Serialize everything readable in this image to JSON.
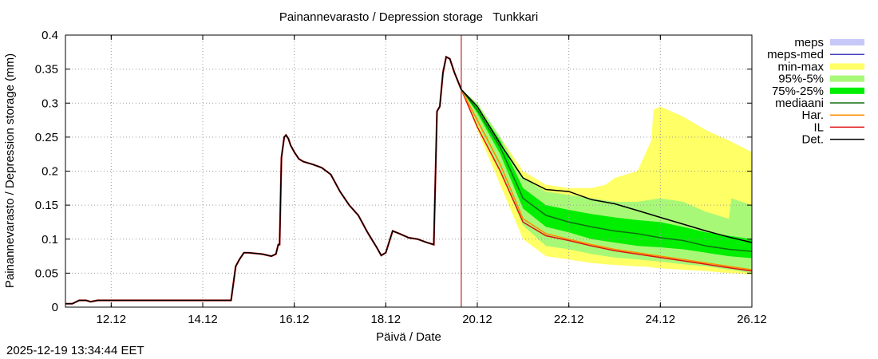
{
  "chart_data": {
    "type": "line",
    "title": "Painannevarasto / Depression storage   Tunkkari",
    "xlabel": "Päivä / Date",
    "ylabel": "Painannevarasto / Depression storage (mm)",
    "x_unit": "days since 11.12",
    "xlim": [
      0,
      15
    ],
    "ylim": [
      0,
      0.4
    ],
    "yticks": [
      0,
      0.05,
      0.1,
      0.15,
      0.2,
      0.25,
      0.3,
      0.35,
      0.4
    ],
    "ytick_labels": [
      "0",
      "0.05",
      "0.1",
      "0.15",
      "0.2",
      "0.25",
      "0.3",
      "0.35",
      "0.4"
    ],
    "xticks": [
      1,
      3,
      5,
      7,
      9,
      11,
      13,
      15
    ],
    "xtick_labels": [
      "12.12",
      "14.12",
      "16.12",
      "18.12",
      "20.12",
      "22.12",
      "24.12",
      "26.12"
    ],
    "forecast_start": 8.65,
    "grid": true,
    "legend_position": "right",
    "legend": [
      {
        "key": "meps",
        "label": "meps",
        "kind": "band"
      },
      {
        "key": "meps_med",
        "label": "meps-med",
        "kind": "line"
      },
      {
        "key": "minmax",
        "label": "min-max",
        "kind": "band"
      },
      {
        "key": "p95_5",
        "label": "95%-5%",
        "kind": "band"
      },
      {
        "key": "p75_25",
        "label": "75%-25%",
        "kind": "band"
      },
      {
        "key": "median",
        "label": "mediaani",
        "kind": "line"
      },
      {
        "key": "har",
        "label": "Har.",
        "kind": "line"
      },
      {
        "key": "il",
        "label": "IL",
        "kind": "line"
      },
      {
        "key": "det",
        "label": "Det.",
        "kind": "line"
      }
    ],
    "colors": {
      "meps": "#c8c8f8",
      "meps_med": "#4040c0",
      "minmax": "#ffff66",
      "p95_5": "#a8f878",
      "p75_25": "#00ee00",
      "median": "#107010",
      "har": "#ff8c00",
      "il": "#e01010",
      "det": "#000000",
      "forecast_line": "#b00000"
    },
    "history": {
      "x": [
        0,
        0.15,
        0.3,
        0.45,
        0.55,
        0.7,
        1,
        2,
        3,
        3.5,
        3.62,
        3.67,
        3.72,
        3.8,
        3.9,
        4,
        4.3,
        4.5,
        4.6,
        4.65,
        4.68,
        4.72,
        4.78,
        4.82,
        4.87,
        4.92,
        5,
        5.1,
        5.2,
        5.4,
        5.6,
        5.8,
        6,
        6.2,
        6.4,
        6.6,
        6.8,
        6.9,
        7,
        7.15,
        7.3,
        7.5,
        7.7,
        7.9,
        8.05,
        8.12,
        8.18,
        8.25,
        8.32,
        8.4,
        8.5,
        8.65
      ],
      "y": [
        0.005,
        0.005,
        0.01,
        0.01,
        0.008,
        0.01,
        0.01,
        0.01,
        0.01,
        0.01,
        0.01,
        0.035,
        0.06,
        0.07,
        0.08,
        0.08,
        0.078,
        0.075,
        0.078,
        0.092,
        0.092,
        0.22,
        0.25,
        0.253,
        0.248,
        0.238,
        0.228,
        0.218,
        0.214,
        0.21,
        0.205,
        0.195,
        0.17,
        0.15,
        0.135,
        0.11,
        0.088,
        0.076,
        0.08,
        0.112,
        0.108,
        0.102,
        0.1,
        0.095,
        0.092,
        0.288,
        0.295,
        0.345,
        0.368,
        0.365,
        0.345,
        0.32
      ]
    },
    "forecast_x": [
      8.65,
      9,
      9.5,
      10,
      10.5,
      11,
      11.5,
      12,
      12.5,
      13,
      13.5,
      14,
      14.5,
      15
    ],
    "bands": {
      "minmax": {
        "x": [
          8.65,
          9,
          9.5,
          10,
          10.5,
          11,
          11.5,
          11.8,
          12,
          12.5,
          12.8,
          12.85,
          13,
          13.5,
          14,
          14.5,
          15
        ],
        "low": [
          0.32,
          0.26,
          0.18,
          0.1,
          0.075,
          0.07,
          0.065,
          0.063,
          0.062,
          0.06,
          0.059,
          0.058,
          0.057,
          0.055,
          0.053,
          0.05,
          0.048
        ],
        "high": [
          0.32,
          0.3,
          0.25,
          0.2,
          0.18,
          0.175,
          0.175,
          0.18,
          0.19,
          0.2,
          0.245,
          0.29,
          0.295,
          0.28,
          0.26,
          0.245,
          0.228
        ]
      },
      "p95_5": {
        "x": [
          8.65,
          9,
          9.5,
          10,
          10.5,
          11,
          11.5,
          12,
          12.5,
          13,
          13.5,
          14,
          14.5,
          14.55,
          15
        ],
        "low": [
          0.32,
          0.27,
          0.2,
          0.12,
          0.09,
          0.085,
          0.078,
          0.073,
          0.07,
          0.067,
          0.063,
          0.06,
          0.055,
          0.055,
          0.05
        ],
        "high": [
          0.32,
          0.3,
          0.25,
          0.19,
          0.17,
          0.165,
          0.16,
          0.155,
          0.155,
          0.16,
          0.155,
          0.14,
          0.13,
          0.16,
          0.15
        ]
      },
      "p75_25": {
        "x": [
          8.65,
          9,
          9.5,
          10,
          10.5,
          11,
          11.5,
          12,
          12.5,
          13,
          13.5,
          14,
          14.5,
          15
        ],
        "low": [
          0.32,
          0.285,
          0.225,
          0.145,
          0.118,
          0.11,
          0.1,
          0.095,
          0.09,
          0.088,
          0.085,
          0.08,
          0.075,
          0.072
        ],
        "high": [
          0.32,
          0.295,
          0.245,
          0.175,
          0.15,
          0.143,
          0.137,
          0.132,
          0.128,
          0.125,
          0.118,
          0.11,
          0.105,
          0.1
        ]
      }
    },
    "series": [
      {
        "name": "mediaani",
        "key": "median",
        "values": [
          0.32,
          0.29,
          0.235,
          0.16,
          0.135,
          0.125,
          0.118,
          0.112,
          0.108,
          0.102,
          0.098,
          0.09,
          0.085,
          0.082
        ]
      },
      {
        "name": "Det.",
        "key": "det",
        "values": [
          0.32,
          0.295,
          0.24,
          0.19,
          0.173,
          0.17,
          0.158,
          0.152,
          0.142,
          0.132,
          0.122,
          0.112,
          0.103,
          0.095
        ]
      },
      {
        "name": "Har.",
        "key": "har",
        "values": [
          0.32,
          0.275,
          0.21,
          0.13,
          0.108,
          0.1,
          0.092,
          0.085,
          0.08,
          0.075,
          0.07,
          0.065,
          0.06,
          0.055
        ]
      },
      {
        "name": "IL",
        "key": "il",
        "values": [
          0.32,
          0.265,
          0.2,
          0.125,
          0.105,
          0.098,
          0.09,
          0.083,
          0.078,
          0.073,
          0.068,
          0.063,
          0.058,
          0.053
        ]
      }
    ]
  },
  "footer": {
    "timestamp": "2025-12-19 13:34:44 EET"
  }
}
